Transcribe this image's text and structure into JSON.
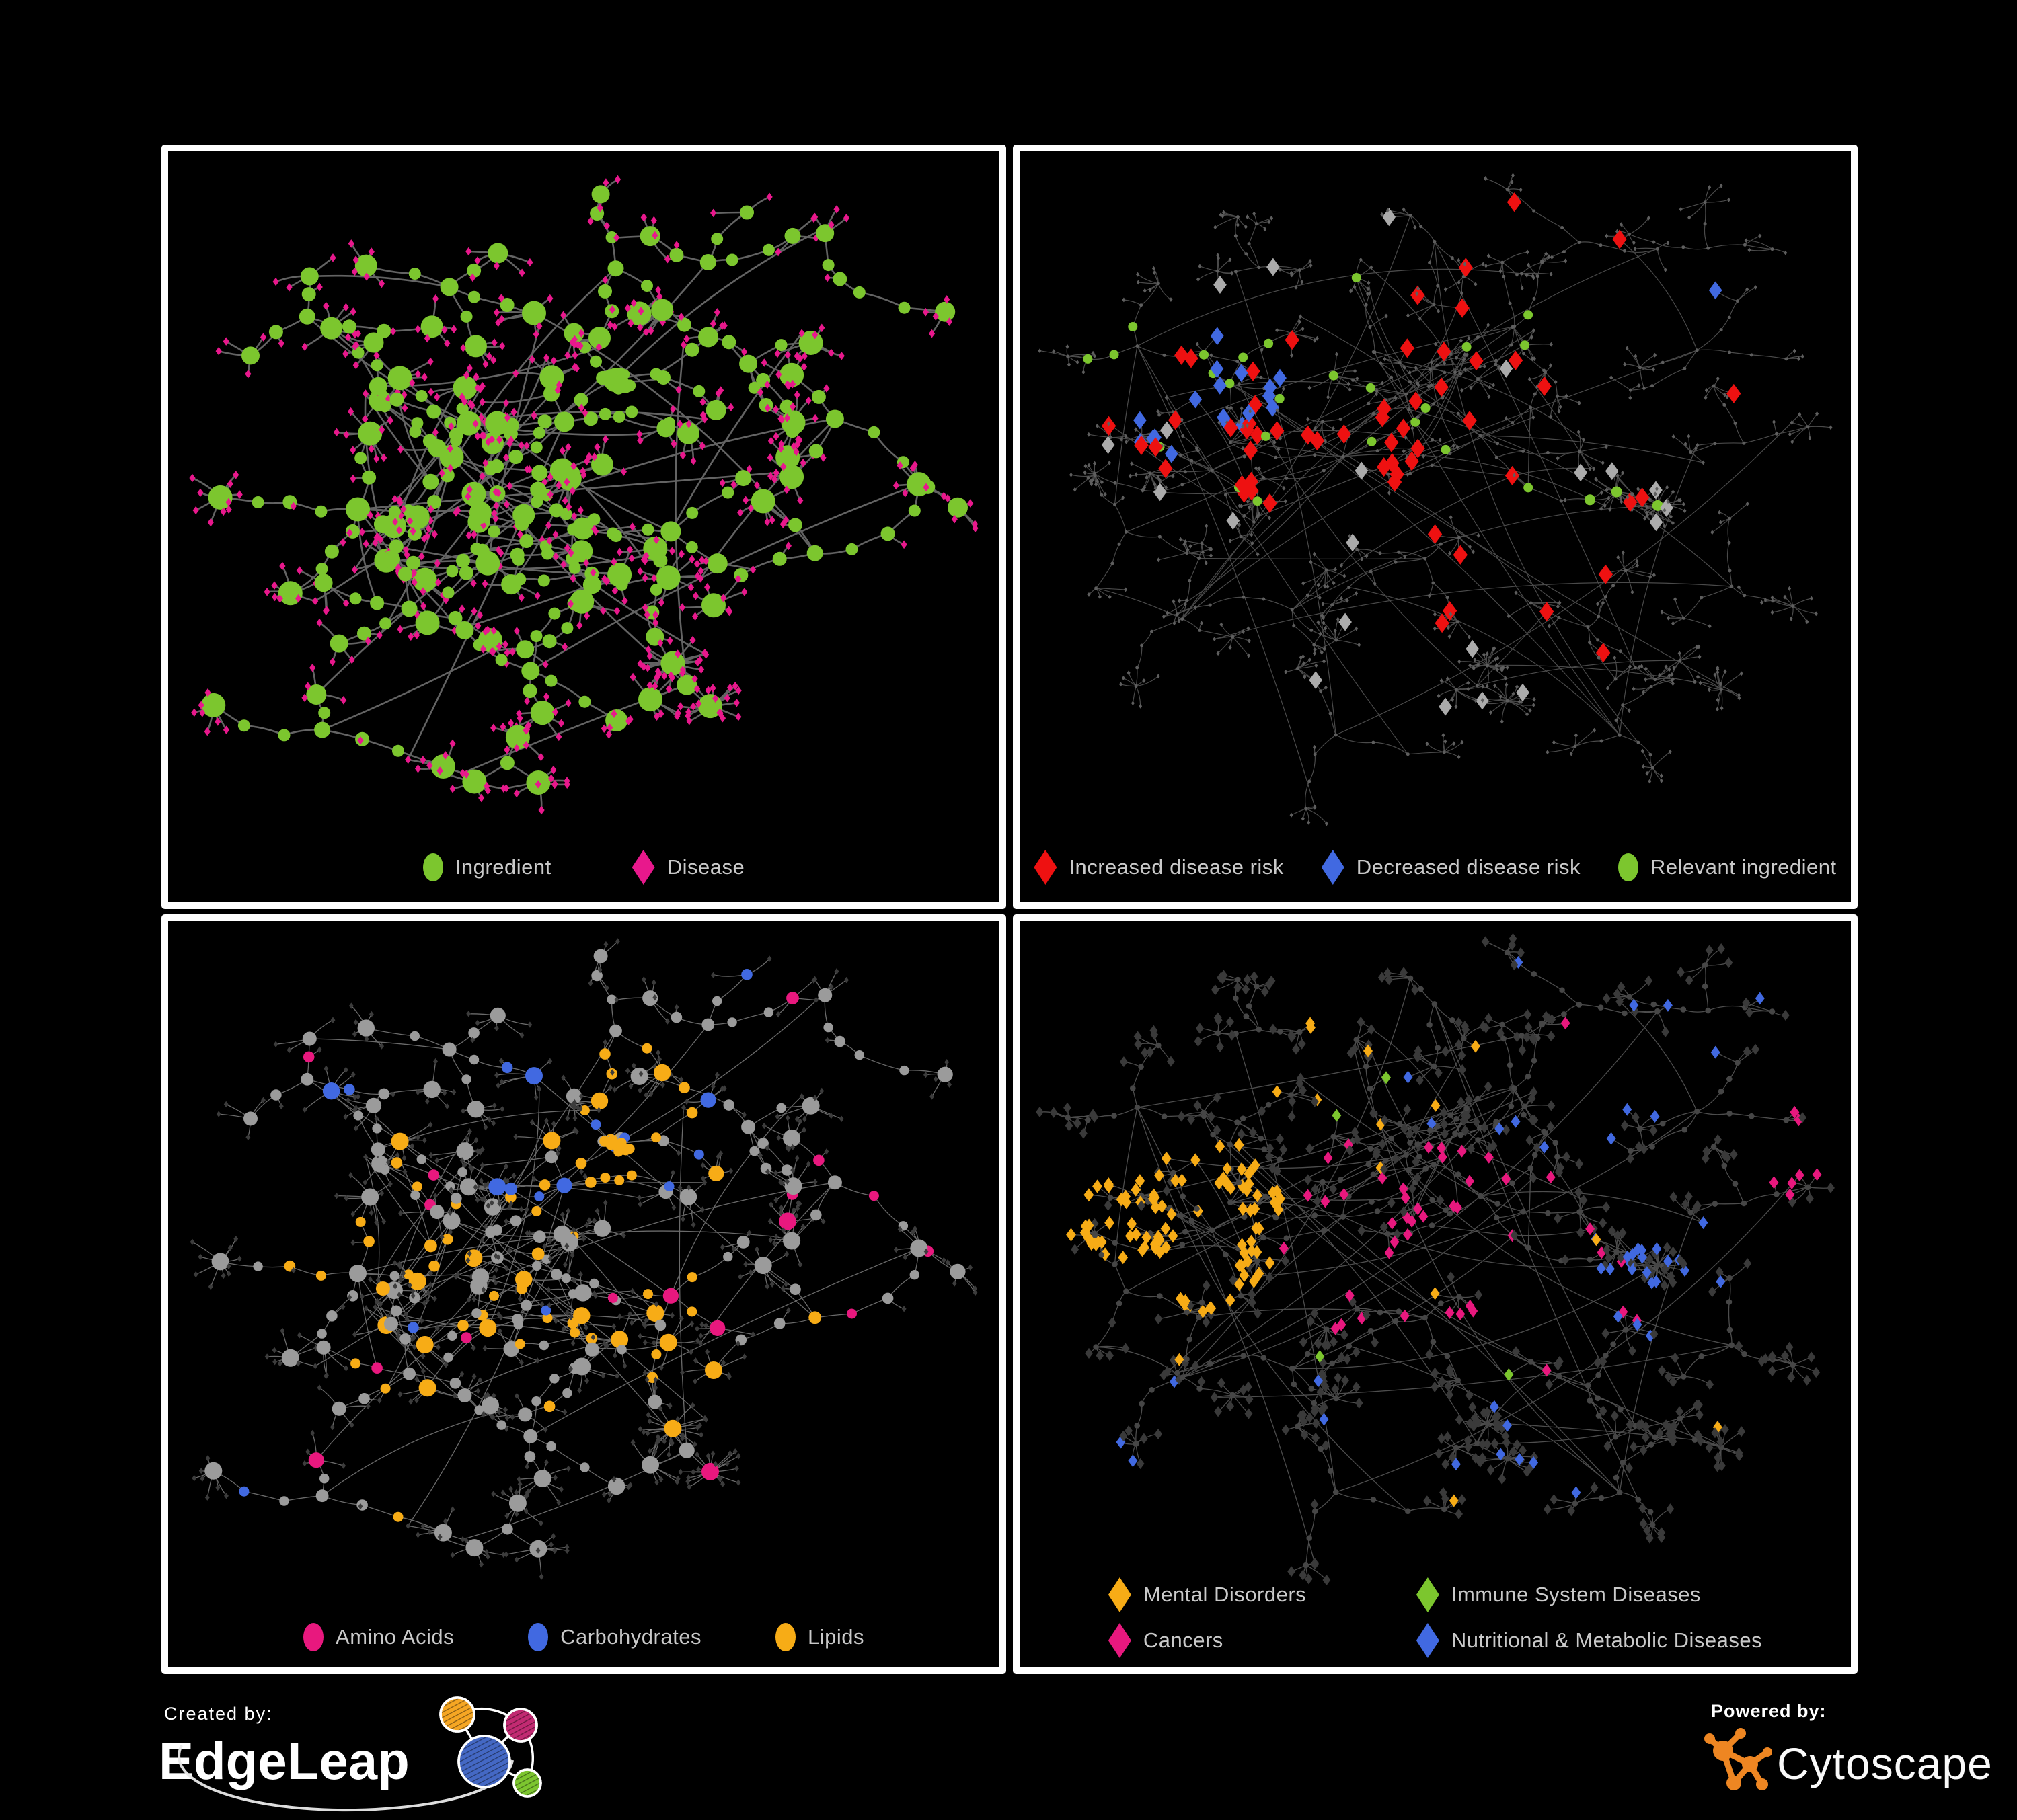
{
  "panels": {
    "ingredient_disease": {
      "legend": [
        {
          "shape": "circle",
          "color": "#7CC62E",
          "label": "Ingredient"
        },
        {
          "shape": "diamond",
          "color": "#E8188C",
          "label": "Disease"
        }
      ],
      "palette": {
        "ingredient": "#7CC62E",
        "disease": "#E8188C",
        "edge": "#6E6E6E"
      }
    },
    "disease_risk": {
      "legend": [
        {
          "shape": "diamond",
          "color": "#EE1111",
          "label": "Increased disease risk"
        },
        {
          "shape": "diamond",
          "color": "#4169E1",
          "label": "Decreased disease risk"
        },
        {
          "shape": "circle",
          "color": "#7CC62E",
          "label": "Relevant ingredient"
        }
      ],
      "palette": {
        "increased": "#EE1111",
        "decreased": "#4169E1",
        "neutral": "#ABABAB",
        "relevant": "#7CC62E",
        "node": "#5E5E5E",
        "edge": "#4E4E4E"
      }
    },
    "ingredient_classes": {
      "legend": [
        {
          "shape": "circle",
          "color": "#E8187E",
          "label": "Amino Acids"
        },
        {
          "shape": "circle",
          "color": "#4169E1",
          "label": "Carbohydrates"
        },
        {
          "shape": "circle",
          "color": "#F7AC16",
          "label": "Lipids"
        }
      ],
      "palette": {
        "amino": "#E8187E",
        "carbs": "#4169E1",
        "lipids": "#F7AC16",
        "base": "#9B9B9B",
        "disease": "#3C3C3C",
        "edge": "#8E8E8E"
      }
    },
    "disease_classes": {
      "legend_rows": [
        [
          {
            "shape": "diamond",
            "color": "#F7AC16",
            "label": "Mental Disorders"
          },
          {
            "shape": "diamond",
            "color": "#7CC62E",
            "label": "Immune System Diseases"
          }
        ],
        [
          {
            "shape": "diamond",
            "color": "#E8187E",
            "label": "Cancers"
          },
          {
            "shape": "diamond",
            "color": "#4169E1",
            "label": "Nutritional & Metabolic Diseases"
          }
        ]
      ],
      "palette": {
        "mental": "#F7AC16",
        "immune": "#7CC62E",
        "cancers": "#E8187E",
        "nutritional": "#4169E1",
        "base": "#3A3A3A",
        "circle": "#464646",
        "edge": "#5B5B5B"
      }
    }
  },
  "footer": {
    "created_by": "Created by:",
    "edgeleap": "EdgeLeap",
    "powered_by": "Powered by:",
    "cytoscape": "Cytoscape",
    "edgeleap_colors": {
      "orange": "#F5A623",
      "magenta": "#C22A72",
      "blue": "#4468C4",
      "green": "#7CC52F"
    },
    "cytoscape_orange": "#EE8622"
  }
}
